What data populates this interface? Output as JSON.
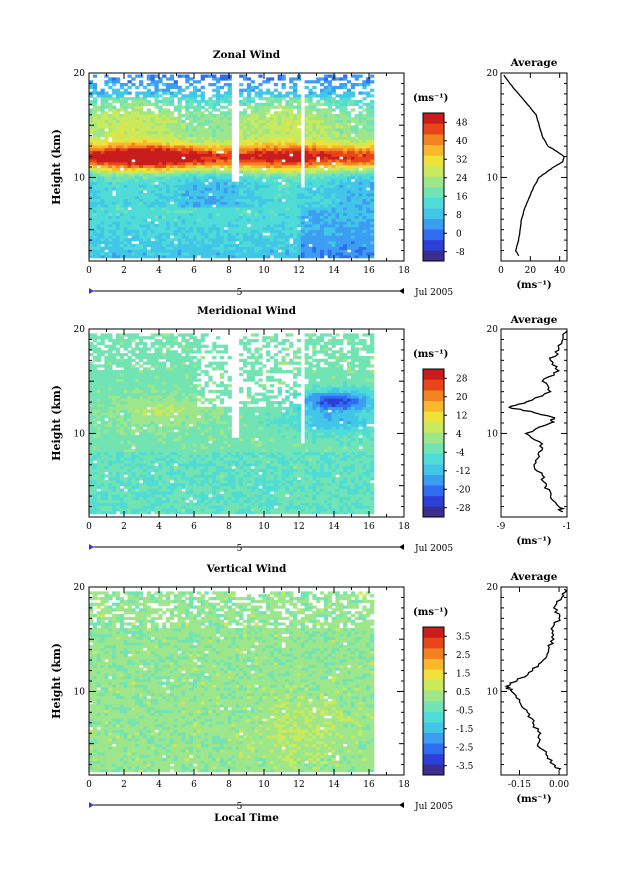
{
  "chart_data": [
    {
      "type": "heatmap",
      "title": "Zonal Wind",
      "ylabel": "Height (km)",
      "xlim": [
        0,
        18
      ],
      "ylim": [
        2,
        20
      ],
      "x_ticks": [
        "0",
        "2",
        "4",
        "6",
        "8",
        "10",
        "12",
        "14",
        "16",
        "18"
      ],
      "y_ticks": [
        "10",
        "20"
      ],
      "date_label": "Jul 2005",
      "day_marker": "5",
      "colorbar": {
        "unit": "(ms⁻¹)",
        "ticks": [
          "48",
          "40",
          "32",
          "24",
          "16",
          "8",
          "0",
          "-8"
        ],
        "vmin": -12,
        "vmax": 52
      },
      "avg_title": "Average",
      "avg_unit": "(ms⁻¹)",
      "avg_xlim": [
        0,
        45
      ],
      "avg_x_ticks": [
        "0",
        "20",
        "40"
      ],
      "avg_y_ticks": [
        "10",
        "20"
      ],
      "average_profile": {
        "height": [
          2.5,
          3,
          4,
          5,
          6,
          7,
          8,
          9,
          10,
          10.5,
          11,
          11.5,
          12,
          12.5,
          13,
          14,
          15,
          16,
          17,
          18,
          19,
          19.8
        ],
        "value": [
          12,
          10,
          12,
          13,
          14,
          16,
          19,
          22,
          26,
          31,
          36,
          42,
          43,
          38,
          32,
          28,
          26,
          24,
          18,
          12,
          6,
          2
        ]
      }
    },
    {
      "type": "heatmap",
      "title": "Meridional Wind",
      "ylabel": "Height (km)",
      "xlim": [
        0,
        18
      ],
      "ylim": [
        2,
        20
      ],
      "x_ticks": [
        "0",
        "2",
        "4",
        "6",
        "8",
        "10",
        "12",
        "14",
        "16",
        "18"
      ],
      "y_ticks": [
        "10",
        "20"
      ],
      "date_label": "Jul 2005",
      "day_marker": "5",
      "colorbar": {
        "unit": "(ms⁻¹)",
        "ticks": [
          "28",
          "20",
          "12",
          "4",
          "-4",
          "-12",
          "-20",
          "-28"
        ],
        "vmin": -32,
        "vmax": 32
      },
      "avg_title": "Average",
      "avg_unit": "(ms⁻¹)",
      "avg_xlim": [
        -9,
        -1
      ],
      "avg_x_ticks": [
        "-9",
        "-1"
      ],
      "avg_y_ticks": [
        "10",
        "20"
      ],
      "average_profile": {
        "height": [
          2.5,
          3,
          4,
          5,
          6,
          7,
          8,
          9,
          10,
          11,
          11.5,
          12,
          12.5,
          13,
          14,
          15,
          16,
          17,
          18,
          19,
          19.8
        ],
        "value": [
          -1.5,
          -2,
          -3,
          -3.5,
          -4,
          -5,
          -4.5,
          -4,
          -6,
          -3,
          -2.5,
          -5,
          -8,
          -6,
          -3,
          -4,
          -2,
          -3,
          -2,
          -1.5,
          -1
        ]
      }
    },
    {
      "type": "heatmap",
      "title": "Vertical Wind",
      "ylabel": "Height (km)",
      "xlabel": "Local Time",
      "xlim": [
        0,
        18
      ],
      "ylim": [
        2,
        20
      ],
      "x_ticks": [
        "0",
        "2",
        "4",
        "6",
        "8",
        "10",
        "12",
        "14",
        "16",
        "18"
      ],
      "y_ticks": [
        "10",
        "20"
      ],
      "date_label": "Jul 2005",
      "day_marker": "5",
      "colorbar": {
        "unit": "(ms⁻¹)",
        "ticks": [
          "3.5",
          "2.5",
          "1.5",
          "0.5",
          "-0.5",
          "-1.5",
          "-2.5",
          "-3.5"
        ],
        "vmin": -4,
        "vmax": 4
      },
      "avg_title": "Average",
      "avg_unit": "(ms⁻¹)",
      "avg_xlim": [
        -0.22,
        0.03
      ],
      "avg_x_ticks": [
        "-0.15",
        "0.00"
      ],
      "avg_y_ticks": [
        "10",
        "20"
      ],
      "average_profile": {
        "height": [
          2.5,
          3,
          4,
          5,
          6,
          7,
          8,
          9,
          10,
          10.5,
          11,
          12,
          13,
          14,
          15,
          16,
          17,
          18,
          19,
          19.8
        ],
        "value": [
          0.0,
          -0.02,
          -0.05,
          -0.08,
          -0.07,
          -0.1,
          -0.12,
          -0.15,
          -0.18,
          -0.2,
          -0.16,
          -0.1,
          -0.06,
          -0.04,
          -0.02,
          -0.03,
          0.0,
          -0.02,
          0.01,
          0.02
        ]
      }
    }
  ]
}
